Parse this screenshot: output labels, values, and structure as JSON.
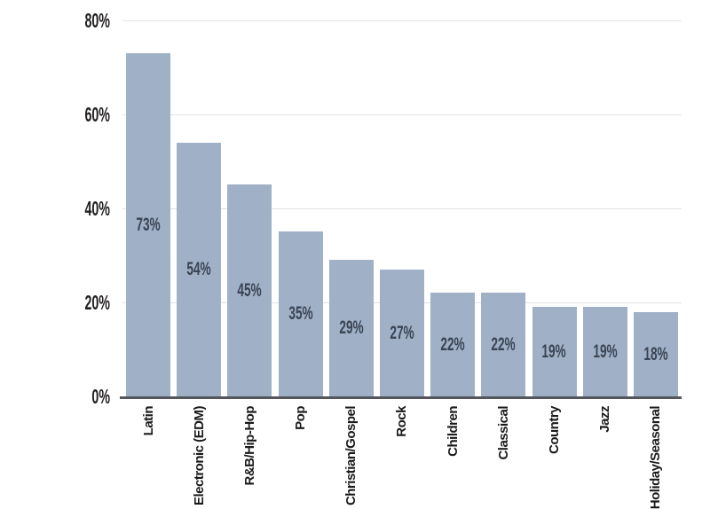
{
  "chart_data": {
    "type": "bar",
    "title": "",
    "xlabel": "",
    "ylabel": "",
    "categories": [
      "Latin",
      "Electronic (EDM)",
      "R&B/Hip-Hop",
      "Pop",
      "Christian/Gospel",
      "Rock",
      "Children",
      "Classical",
      "Country",
      "Jazz",
      "Holiday/Seasonal"
    ],
    "values": [
      73,
      54,
      45,
      35,
      29,
      27,
      22,
      22,
      19,
      19,
      18
    ],
    "bar_labels": [
      "73%",
      "54%",
      "45%",
      "35%",
      "29%",
      "27%",
      "22%",
      "22%",
      "19%",
      "19%",
      "18%"
    ],
    "yticks": [
      "0%",
      "20%",
      "40%",
      "60%",
      "80%"
    ],
    "ylim": [
      0,
      80
    ],
    "grid": "horizontal-behind-bars",
    "legend": "none",
    "x_label_rotation_deg": 90,
    "colors": {
      "bar": "#9FB0C7",
      "bar_label": "#3A4453",
      "grid": "#E3E3E3",
      "axis_line": "#54565B",
      "y_tick_label": "#221F20"
    }
  }
}
